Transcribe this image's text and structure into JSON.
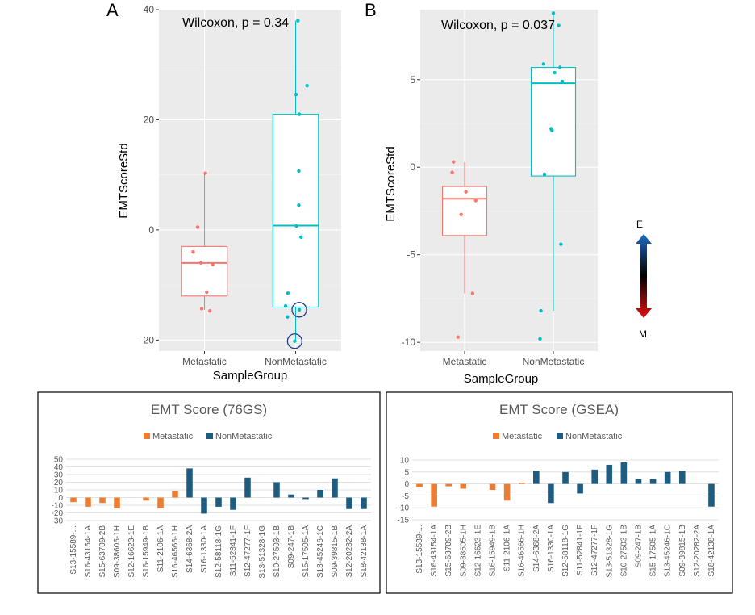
{
  "panels": {
    "a": "A",
    "b": "B"
  },
  "arrow": {
    "top": "E",
    "bottom": "M"
  },
  "colors": {
    "metastatic": "#f8766d",
    "nonmetastatic": "#00bfc4",
    "bar_met": "#ed7d31",
    "bar_non": "#1f5c80"
  },
  "chart_data": [
    {
      "type": "box",
      "panel": "A",
      "annotation": "Wilcoxon, p = 0.34",
      "xlabel": "SampleGroup",
      "ylabel": "EMTScoreStd",
      "categories": [
        "Metastatic",
        "NonMetastatic"
      ],
      "ylim": [
        -22,
        40
      ],
      "yticks": [
        -20,
        0,
        20,
        40
      ],
      "boxes": [
        {
          "name": "Metastatic",
          "min": -14.5,
          "q1": -12,
          "median": -6,
          "q3": -3,
          "max": 10.3
        },
        {
          "name": "NonMetastatic",
          "min": -20,
          "q1": -14,
          "median": 0.8,
          "q3": 21,
          "max": 38
        }
      ],
      "points": [
        {
          "group": "Metastatic",
          "y": 10.3,
          "jitter": 0.02
        },
        {
          "group": "Metastatic",
          "y": 0.5,
          "jitter": -0.15
        },
        {
          "group": "Metastatic",
          "y": -4,
          "jitter": -0.25
        },
        {
          "group": "Metastatic",
          "y": -6,
          "jitter": -0.08
        },
        {
          "group": "Metastatic",
          "y": -6.3,
          "jitter": 0.18
        },
        {
          "group": "Metastatic",
          "y": -11.3,
          "jitter": 0.05
        },
        {
          "group": "Metastatic",
          "y": -14.3,
          "jitter": -0.06
        },
        {
          "group": "Metastatic",
          "y": -14.7,
          "jitter": 0.12
        },
        {
          "group": "NonMetastatic",
          "y": 38,
          "jitter": 0.05
        },
        {
          "group": "NonMetastatic",
          "y": 26.2,
          "jitter": 0.25
        },
        {
          "group": "NonMetastatic",
          "y": 24.6,
          "jitter": 0.01
        },
        {
          "group": "NonMetastatic",
          "y": 21,
          "jitter": 0.08
        },
        {
          "group": "NonMetastatic",
          "y": 10.7,
          "jitter": 0.07
        },
        {
          "group": "NonMetastatic",
          "y": 4.5,
          "jitter": 0.07
        },
        {
          "group": "NonMetastatic",
          "y": 0.7,
          "jitter": 0.02
        },
        {
          "group": "NonMetastatic",
          "y": -1.3,
          "jitter": 0.12
        },
        {
          "group": "NonMetastatic",
          "y": -11.5,
          "jitter": -0.17
        },
        {
          "group": "NonMetastatic",
          "y": -13.8,
          "jitter": -0.22
        },
        {
          "group": "NonMetastatic",
          "y": -14.5,
          "jitter": 0.08
        },
        {
          "group": "NonMetastatic",
          "y": -15.8,
          "jitter": -0.18
        },
        {
          "group": "NonMetastatic",
          "y": -20.2,
          "jitter": -0.02
        }
      ],
      "highlighted": [
        {
          "group": "NonMetastatic",
          "y": -14.5,
          "jitter": 0.08
        },
        {
          "group": "NonMetastatic",
          "y": -20.2,
          "jitter": -0.02
        }
      ]
    },
    {
      "type": "box",
      "panel": "B",
      "annotation": "Wilcoxon, p = 0.037",
      "xlabel": "SampleGroup",
      "ylabel": "EMTScoreStd",
      "categories": [
        "Metastatic",
        "NonMetastatic"
      ],
      "ylim": [
        -10.5,
        9
      ],
      "yticks": [
        -10,
        -5,
        0,
        5
      ],
      "boxes": [
        {
          "name": "Metastatic",
          "min": -7.2,
          "q1": -3.9,
          "median": -1.8,
          "q3": -1.1,
          "max": 0.3
        },
        {
          "name": "NonMetastatic",
          "min": -8.2,
          "q1": -0.5,
          "median": 4.8,
          "q3": 5.7,
          "max": 8.8
        }
      ],
      "points": [
        {
          "group": "Metastatic",
          "y": 0.3,
          "jitter": -0.25
        },
        {
          "group": "Metastatic",
          "y": -0.3,
          "jitter": -0.28
        },
        {
          "group": "Metastatic",
          "y": -1.4,
          "jitter": 0.03
        },
        {
          "group": "Metastatic",
          "y": -1.9,
          "jitter": 0.25
        },
        {
          "group": "Metastatic",
          "y": -2.7,
          "jitter": -0.08
        },
        {
          "group": "Metastatic",
          "y": -7.2,
          "jitter": 0.18
        },
        {
          "group": "Metastatic",
          "y": -9.7,
          "jitter": -0.15
        },
        {
          "group": "NonMetastatic",
          "y": 8.8,
          "jitter": 0.0
        },
        {
          "group": "NonMetastatic",
          "y": 8.1,
          "jitter": 0.12
        },
        {
          "group": "NonMetastatic",
          "y": 5.9,
          "jitter": -0.22
        },
        {
          "group": "NonMetastatic",
          "y": 5.7,
          "jitter": 0.15
        },
        {
          "group": "NonMetastatic",
          "y": 5.4,
          "jitter": 0.03
        },
        {
          "group": "NonMetastatic",
          "y": 4.9,
          "jitter": 0.2
        },
        {
          "group": "NonMetastatic",
          "y": 2.2,
          "jitter": -0.05
        },
        {
          "group": "NonMetastatic",
          "y": 2.1,
          "jitter": -0.03
        },
        {
          "group": "NonMetastatic",
          "y": -0.4,
          "jitter": -0.2
        },
        {
          "group": "NonMetastatic",
          "y": -4.4,
          "jitter": 0.17
        },
        {
          "group": "NonMetastatic",
          "y": -8.2,
          "jitter": -0.28
        },
        {
          "group": "NonMetastatic",
          "y": -9.8,
          "jitter": -0.3
        }
      ],
      "highlighted": []
    },
    {
      "type": "bar",
      "title": "EMT Score (76GS)",
      "legend": [
        "Metastatic",
        "NonMetastatic"
      ],
      "legend_position": "top",
      "ylim": [
        -30,
        50
      ],
      "yticks": [
        -30,
        -20,
        -10,
        0,
        10,
        20,
        30,
        40,
        50
      ],
      "grid": true,
      "categories": [
        "S13-15589-...",
        "S16-43154-1A",
        "S15-63709-2B",
        "S09-38605-1H",
        "S12-16623-1E",
        "S16-15949-1B",
        "S11-2106-1A",
        "S16-46566-1H",
        "S14-6368-2A",
        "S16-1330-1A",
        "S12-58118-1G",
        "S11-52841-1F",
        "S12-47277-1F",
        "S13-51328-1G",
        "S10-27503-1B",
        "S09-247-1B",
        "S15-17505-1A",
        "S13-45246-1C",
        "S09-39815-1B",
        "S12-20282-2A",
        "S18-42138-1A"
      ],
      "groups": [
        "Metastatic",
        "Metastatic",
        "Metastatic",
        "Metastatic",
        "Metastatic",
        "Metastatic",
        "Metastatic",
        "Metastatic",
        "NonMetastatic",
        "NonMetastatic",
        "NonMetastatic",
        "NonMetastatic",
        "NonMetastatic",
        "NonMetastatic",
        "NonMetastatic",
        "NonMetastatic",
        "NonMetastatic",
        "NonMetastatic",
        "NonMetastatic",
        "NonMetastatic",
        "NonMetastatic"
      ],
      "values": [
        -6,
        -12,
        -7,
        -14,
        0,
        -4,
        -14,
        9,
        38,
        -21,
        -12,
        -16,
        26,
        0,
        20,
        4,
        -2,
        10,
        25,
        -15,
        -15
      ]
    },
    {
      "type": "bar",
      "title": "EMT Score (GSEA)",
      "legend": [
        "Metastatic",
        "NonMetastatic"
      ],
      "legend_position": "top",
      "ylim": [
        -15,
        10
      ],
      "yticks": [
        -15,
        -10,
        -5,
        0,
        5,
        10
      ],
      "grid": true,
      "categories": [
        "S13-15589-...",
        "S16-43154-1A",
        "S15-63709-2B",
        "S09-38605-1H",
        "S12-16623-1E",
        "S16-15949-1B",
        "S11-2106-1A",
        "S16-46566-1H",
        "S14-6368-2A",
        "S16-1330-1A",
        "S12-58118-1G",
        "S11-52841-1F",
        "S12-47277-1F",
        "S13-51328-1G",
        "S10-27503-1B",
        "S09-247-1B",
        "S15-17505-1A",
        "S13-45246-1C",
        "S09-39815-1B",
        "S12-20282-2A",
        "S18-42138-1A"
      ],
      "groups": [
        "Metastatic",
        "Metastatic",
        "Metastatic",
        "Metastatic",
        "Metastatic",
        "Metastatic",
        "Metastatic",
        "Metastatic",
        "NonMetastatic",
        "NonMetastatic",
        "NonMetastatic",
        "NonMetastatic",
        "NonMetastatic",
        "NonMetastatic",
        "NonMetastatic",
        "NonMetastatic",
        "NonMetastatic",
        "NonMetastatic",
        "NonMetastatic",
        "NonMetastatic",
        "NonMetastatic"
      ],
      "values": [
        -1.5,
        -9.5,
        -1,
        -2,
        0,
        -2.5,
        -7,
        0.5,
        5.5,
        -8,
        5,
        -4,
        6,
        8,
        9,
        2,
        2,
        5,
        5.5,
        0,
        -9.5
      ]
    }
  ]
}
